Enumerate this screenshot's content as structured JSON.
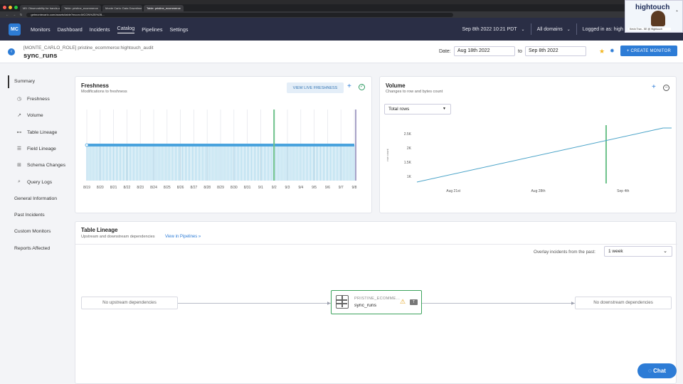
{
  "browser": {
    "tabs": [
      "M5: Observability for hands-on",
      "Table: pristine_ecommerce",
      "Monte Carlo: Data Downtime",
      "Table: pristine_ecommerce"
    ],
    "url": "getmontecarlo.com/assets/table?mcon=MCON%2B%2B..."
  },
  "app_nav": {
    "logo": "MC",
    "items": [
      "Monitors",
      "Dashboard",
      "Incidents",
      "Catalog",
      "Pipelines",
      "Settings"
    ],
    "datetime": "Sep 8th 2022 10:21 PDT",
    "domains": "All domains",
    "logged_in": "Logged in as: high"
  },
  "webcam": {
    "brand": "hightouch",
    "caption": "Kevin Tran - SE @ Hightouch"
  },
  "header": {
    "breadcrumb": "[MONTE_CARLO_ROLE] pristine_ecommerce:hightouch_audit",
    "title": "sync_runs",
    "date_label": "Date:",
    "date_from": "Aug 18th 2022",
    "to_label": "to",
    "date_to": "Sep 8th 2022",
    "create_monitor": "CREATE MONITOR"
  },
  "sidebar": {
    "items": [
      {
        "label": "Summary",
        "icon": "none"
      },
      {
        "label": "Freshness",
        "icon": "clock-icon"
      },
      {
        "label": "Volume",
        "icon": "trend-icon"
      },
      {
        "label": "Table Lineage",
        "icon": "lineage-icon"
      },
      {
        "label": "Field Lineage",
        "icon": "list-icon"
      },
      {
        "label": "Schema Changes",
        "icon": "schema-icon"
      },
      {
        "label": "Query Logs",
        "icon": "search-icon"
      },
      {
        "label": "General Information",
        "icon": "none"
      },
      {
        "label": "Past Incidents",
        "icon": "none"
      },
      {
        "label": "Custom Monitors",
        "icon": "none"
      },
      {
        "label": "Reports Affected",
        "icon": "none"
      }
    ]
  },
  "freshness": {
    "title": "Freshness",
    "subtitle": "Modifications to freshness",
    "live_button": "VIEW LIVE FRESHNESS",
    "chart_data": {
      "type": "bar",
      "categories": [
        "8/19",
        "8/20",
        "8/21",
        "8/22",
        "8/23",
        "8/24",
        "8/25",
        "8/26",
        "8/27",
        "8/28",
        "8/29",
        "8/30",
        "8/31",
        "9/1",
        "9/2",
        "9/3",
        "9/4",
        "9/5",
        "9/6",
        "9/7",
        "9/8"
      ],
      "highlight_category": "9/2",
      "grid": true
    }
  },
  "volume": {
    "title": "Volume",
    "subtitle": "Changes to row and bytes count",
    "metric_select": "Total rows",
    "chart_data": {
      "type": "line",
      "ylabel": "row count",
      "yticks": [
        "1K",
        "1.5K",
        "2K",
        "2.5K"
      ],
      "xticks": [
        "Aug 21st",
        "Aug 28th",
        "Sep 4th"
      ],
      "series": [
        {
          "x": [
            "Aug 18",
            "Sep 8"
          ],
          "values": [
            800,
            2700
          ]
        }
      ],
      "highlight_x": "Sep 2",
      "color": "#4aa3c8"
    }
  },
  "lineage": {
    "title": "Table Lineage",
    "subtitle": "Upstream and downstream dependencies",
    "view_pipelines": "View in Pipelines »",
    "overlay_label": "Overlay incidents from the past:",
    "overlay_value": "1 week",
    "upstream": "No upstream dependencies",
    "downstream": "No downstream dependencies",
    "node": {
      "database": "PRISTINE_ECOMME...",
      "table": "sync_runs",
      "badge": "T"
    }
  },
  "chat": "Chat"
}
